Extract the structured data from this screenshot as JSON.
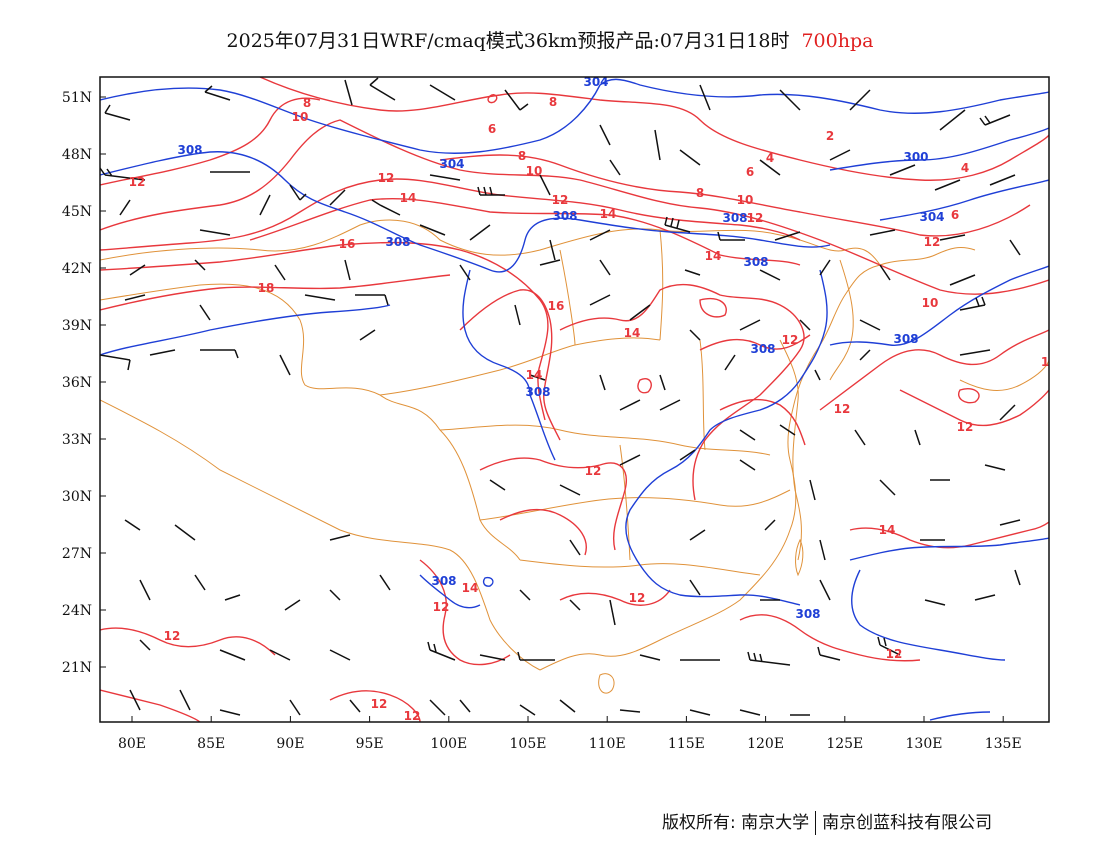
{
  "title": {
    "main": "2025年07月31日WRF/cmaq模式36km预报产品:07月31日18时",
    "level": "700hpa"
  },
  "colors": {
    "temperature_contour": "#e8383d",
    "height_contour": "#1f3fd6",
    "boundary": "#e0923a",
    "wind_barb": "#111111",
    "level_label": "#e02020"
  },
  "axes": {
    "lon_labels": [
      "80E",
      "85E",
      "90E",
      "95E",
      "100E",
      "105E",
      "110E",
      "115E",
      "120E",
      "125E",
      "130E",
      "135E"
    ],
    "lat_labels": [
      "51N",
      "48N",
      "45N",
      "42N",
      "39N",
      "36N",
      "33N",
      "30N",
      "27N",
      "24N",
      "21N"
    ]
  },
  "contour_labels": {
    "temperature": [
      "8",
      "10",
      "6",
      "8",
      "10",
      "12",
      "14",
      "16",
      "18",
      "12",
      "14",
      "16",
      "8",
      "10",
      "12",
      "14",
      "6",
      "4",
      "2",
      "8",
      "6",
      "4",
      "10",
      "12",
      "14",
      "12",
      "12",
      "12",
      "14",
      "12",
      "12",
      "12",
      "14",
      "12",
      "12",
      "12",
      "12",
      "14",
      "12",
      "1"
    ],
    "height": [
      "308",
      "304",
      "304",
      "308",
      "308",
      "308",
      "308",
      "300",
      "304",
      "308",
      "308",
      "308",
      "308",
      "308"
    ]
  },
  "copyright": {
    "owner1": "版权所有: 南京大学",
    "owner2": "南京创蓝科技有限公司"
  }
}
